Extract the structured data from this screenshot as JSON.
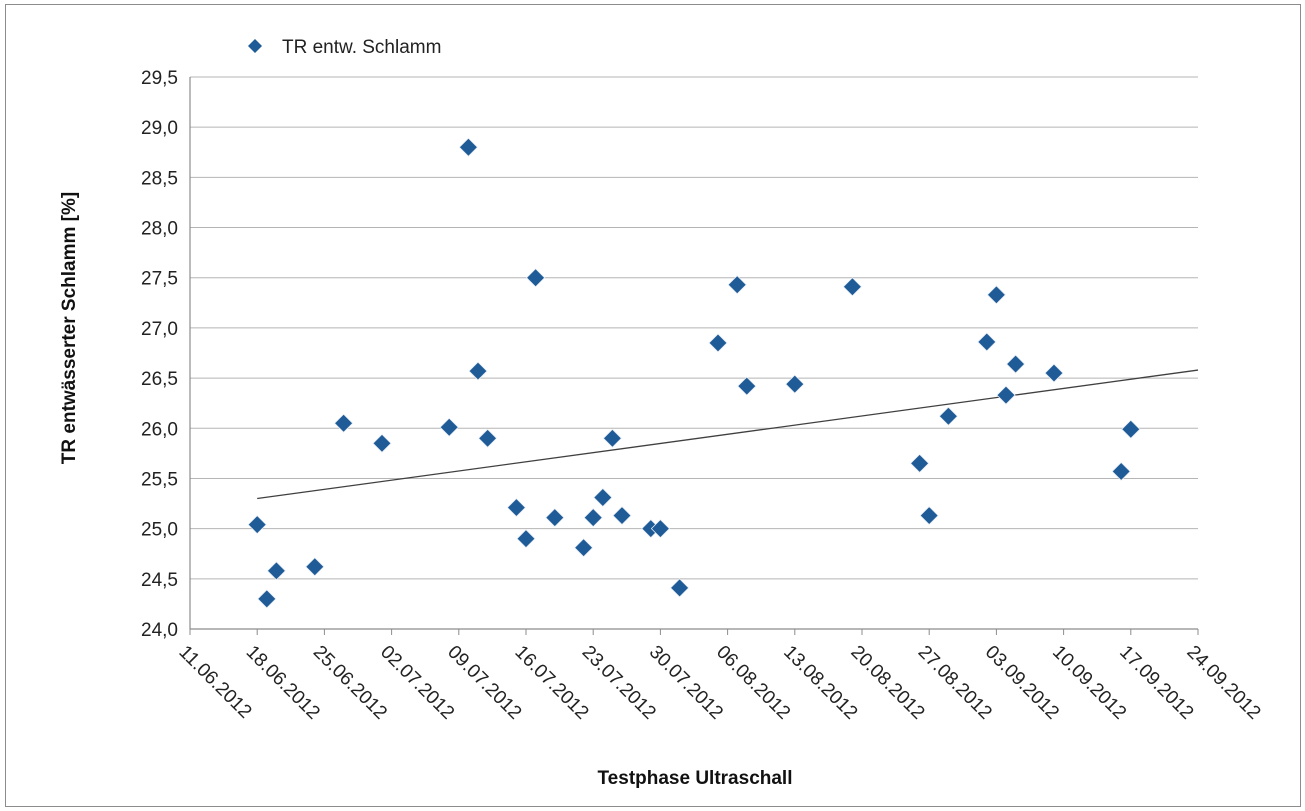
{
  "chart_data": {
    "type": "scatter",
    "xlabel": "Testphase Ultraschall",
    "ylabel": "TR entwässerter Schlamm [%]",
    "ylim": [
      24.0,
      29.5
    ],
    "yticks": [
      "24,0",
      "24,5",
      "25,0",
      "25,5",
      "26,0",
      "26,5",
      "27,0",
      "27,5",
      "28,0",
      "28,5",
      "29,0",
      "29,5"
    ],
    "xlim": [
      "2012-06-11",
      "2012-09-24"
    ],
    "xticks": [
      "11.06.2012",
      "18.06.2012",
      "25.06.2012",
      "02.07.2012",
      "09.07.2012",
      "16.07.2012",
      "23.07.2012",
      "30.07.2012",
      "06.08.2012",
      "13.08.2012",
      "20.08.2012",
      "27.08.2012",
      "03.09.2012",
      "10.09.2012",
      "17.09.2012",
      "24.09.2012"
    ],
    "grid": "horizontal",
    "legend_position": "top-left",
    "marker_color": "#1f5b96",
    "series": [
      {
        "name": "TR entw. Schlamm",
        "marker": "diamond",
        "points": [
          {
            "x": "2012-06-18",
            "y": 25.04
          },
          {
            "x": "2012-06-19",
            "y": 24.3
          },
          {
            "x": "2012-06-20",
            "y": 24.58
          },
          {
            "x": "2012-06-24",
            "y": 24.62
          },
          {
            "x": "2012-06-27",
            "y": 26.05
          },
          {
            "x": "2012-07-01",
            "y": 25.85
          },
          {
            "x": "2012-07-08",
            "y": 26.01
          },
          {
            "x": "2012-07-10",
            "y": 28.8
          },
          {
            "x": "2012-07-11",
            "y": 26.57
          },
          {
            "x": "2012-07-12",
            "y": 25.9
          },
          {
            "x": "2012-07-15",
            "y": 25.21
          },
          {
            "x": "2012-07-16",
            "y": 24.9
          },
          {
            "x": "2012-07-17",
            "y": 27.5
          },
          {
            "x": "2012-07-19",
            "y": 25.11
          },
          {
            "x": "2012-07-22",
            "y": 24.81
          },
          {
            "x": "2012-07-23",
            "y": 25.11
          },
          {
            "x": "2012-07-24",
            "y": 25.31
          },
          {
            "x": "2012-07-25",
            "y": 25.9
          },
          {
            "x": "2012-07-26",
            "y": 25.13
          },
          {
            "x": "2012-07-29",
            "y": 25.0
          },
          {
            "x": "2012-07-30",
            "y": 25.0
          },
          {
            "x": "2012-08-01",
            "y": 24.41
          },
          {
            "x": "2012-08-05",
            "y": 26.85
          },
          {
            "x": "2012-08-07",
            "y": 27.43
          },
          {
            "x": "2012-08-08",
            "y": 26.42
          },
          {
            "x": "2012-08-13",
            "y": 26.44
          },
          {
            "x": "2012-08-19",
            "y": 27.41
          },
          {
            "x": "2012-08-26",
            "y": 25.65
          },
          {
            "x": "2012-08-27",
            "y": 25.13
          },
          {
            "x": "2012-08-29",
            "y": 26.12
          },
          {
            "x": "2012-09-02",
            "y": 26.86
          },
          {
            "x": "2012-09-03",
            "y": 27.33
          },
          {
            "x": "2012-09-04",
            "y": 26.33
          },
          {
            "x": "2012-09-05",
            "y": 26.64
          },
          {
            "x": "2012-09-09",
            "y": 26.55
          },
          {
            "x": "2012-09-16",
            "y": 25.57
          },
          {
            "x": "2012-09-17",
            "y": 25.99
          }
        ]
      }
    ],
    "trendline": {
      "type": "linear",
      "start": {
        "x": "2012-06-18",
        "y": 25.3
      },
      "end": {
        "x": "2012-09-24",
        "y": 26.58
      }
    }
  }
}
